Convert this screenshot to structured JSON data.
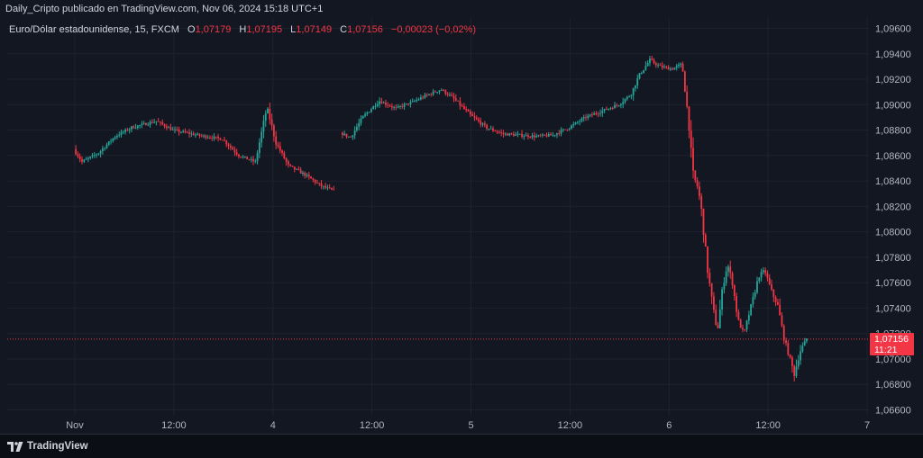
{
  "attribution": "Daily_Cripto publicado en TradingView.com, Nov 06, 2024 15:18 UTC+1",
  "legend": {
    "symbol": "Euro/Dólar estadounidense, 15, FXCM",
    "o_label": "O",
    "o_value": "1,07179",
    "h_label": "H",
    "h_value": "1,07195",
    "l_label": "L",
    "l_value": "1,07149",
    "c_label": "C",
    "c_value": "1,07156",
    "change": "−0,00023 (−0,02%)"
  },
  "last_price": {
    "value": "1,07156",
    "countdown": "11:21"
  },
  "brand": {
    "name": "TradingView"
  },
  "colors": {
    "up": "#26a69a",
    "down": "#f23645",
    "background": "#131722",
    "grid": "#1e222d"
  },
  "chart_data": {
    "type": "candlestick",
    "y_axis": {
      "range": [
        1.0655,
        1.0965
      ],
      "ticks": [
        "1,09600",
        "1,09400",
        "1,09200",
        "1,09000",
        "1,08800",
        "1,08600",
        "1,08400",
        "1,08200",
        "1,08000",
        "1,07800",
        "1,07600",
        "1,07400",
        "1,07200",
        "1,07000",
        "1,06800",
        "1,06600"
      ],
      "tick_values": [
        1.096,
        1.094,
        1.092,
        1.09,
        1.088,
        1.086,
        1.084,
        1.082,
        1.08,
        1.078,
        1.076,
        1.074,
        1.072,
        1.07,
        1.068,
        1.066
      ]
    },
    "x_axis": {
      "ticks": [
        "Nov",
        "12:00",
        "4",
        "12:00",
        "5",
        "12:00",
        "6",
        "12:00",
        "7"
      ],
      "tick_positions_hours": [
        0,
        12,
        24,
        36,
        48,
        60,
        72,
        84,
        96
      ]
    },
    "last_price_value": 1.07156,
    "price_path": [
      {
        "t": 0,
        "p": 1.0865
      },
      {
        "t": 1,
        "p": 1.0855
      },
      {
        "t": 3,
        "p": 1.0862
      },
      {
        "t": 5,
        "p": 1.0875
      },
      {
        "t": 7,
        "p": 1.0882
      },
      {
        "t": 10,
        "p": 1.0887
      },
      {
        "t": 12,
        "p": 1.088
      },
      {
        "t": 15,
        "p": 1.0876
      },
      {
        "t": 18,
        "p": 1.0873
      },
      {
        "t": 20,
        "p": 1.086
      },
      {
        "t": 22,
        "p": 1.0855
      },
      {
        "t": 23.4,
        "p": 1.0898
      },
      {
        "t": 24.5,
        "p": 1.087
      },
      {
        "t": 26,
        "p": 1.0852
      },
      {
        "t": 28,
        "p": 1.0845
      },
      {
        "t": 30,
        "p": 1.0836
      },
      {
        "t": 31.5,
        "p": 1.0832
      },
      {
        "t": "gap"
      },
      {
        "t": 32.3,
        "p": 1.0878
      },
      {
        "t": 33.5,
        "p": 1.0874
      },
      {
        "t": 35,
        "p": 1.089
      },
      {
        "t": 37,
        "p": 1.0903
      },
      {
        "t": 39,
        "p": 1.0897
      },
      {
        "t": 41,
        "p": 1.0902
      },
      {
        "t": 43,
        "p": 1.0908
      },
      {
        "t": 44.5,
        "p": 1.0912
      },
      {
        "t": 46,
        "p": 1.0905
      },
      {
        "t": 48,
        "p": 1.0892
      },
      {
        "t": 50,
        "p": 1.0882
      },
      {
        "t": 52,
        "p": 1.0877
      },
      {
        "t": 54,
        "p": 1.0876
      },
      {
        "t": 56,
        "p": 1.0875
      },
      {
        "t": 58,
        "p": 1.0876
      },
      {
        "t": 60,
        "p": 1.0882
      },
      {
        "t": 62,
        "p": 1.089
      },
      {
        "t": 64,
        "p": 1.0895
      },
      {
        "t": 66,
        "p": 1.09
      },
      {
        "t": 67.5,
        "p": 1.0908
      },
      {
        "t": 68.5,
        "p": 1.0923
      },
      {
        "t": 69.8,
        "p": 1.0935
      },
      {
        "t": 71,
        "p": 1.093
      },
      {
        "t": 72.5,
        "p": 1.0928
      },
      {
        "t": 73.7,
        "p": 1.0932
      },
      {
        "t": 74.1,
        "p": 1.091
      },
      {
        "t": 74.6,
        "p": 1.088
      },
      {
        "t": 75,
        "p": 1.0845
      },
      {
        "t": 75.6,
        "p": 1.0835
      },
      {
        "t": 76,
        "p": 1.082
      },
      {
        "t": 76.8,
        "p": 1.077
      },
      {
        "t": 77.5,
        "p": 1.0738
      },
      {
        "t": 78,
        "p": 1.0722
      },
      {
        "t": 78.6,
        "p": 1.0755
      },
      {
        "t": 79.2,
        "p": 1.0775
      },
      {
        "t": 79.8,
        "p": 1.076
      },
      {
        "t": 80.5,
        "p": 1.073
      },
      {
        "t": 81.2,
        "p": 1.072
      },
      {
        "t": 82,
        "p": 1.074
      },
      {
        "t": 83,
        "p": 1.0765
      },
      {
        "t": 83.7,
        "p": 1.077
      },
      {
        "t": 84.6,
        "p": 1.0752
      },
      {
        "t": 85.3,
        "p": 1.0742
      },
      {
        "t": 86,
        "p": 1.0718
      },
      {
        "t": 86.7,
        "p": 1.0702
      },
      {
        "t": 87.3,
        "p": 1.0688
      },
      {
        "t": 88,
        "p": 1.0706
      },
      {
        "t": 88.8,
        "p": 1.0716
      }
    ]
  }
}
